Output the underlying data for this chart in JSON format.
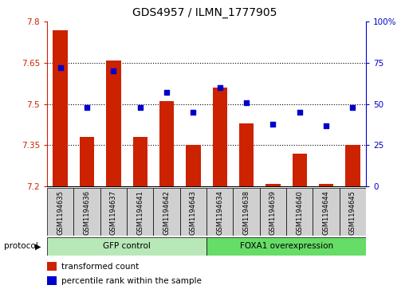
{
  "title": "GDS4957 / ILMN_1777905",
  "samples": [
    "GSM1194635",
    "GSM1194636",
    "GSM1194637",
    "GSM1194641",
    "GSM1194642",
    "GSM1194643",
    "GSM1194634",
    "GSM1194638",
    "GSM1194639",
    "GSM1194640",
    "GSM1194644",
    "GSM1194645"
  ],
  "transformed_count": [
    7.77,
    7.38,
    7.66,
    7.38,
    7.51,
    7.35,
    7.56,
    7.43,
    7.21,
    7.32,
    7.21,
    7.35
  ],
  "percentile_rank": [
    72,
    48,
    70,
    48,
    57,
    45,
    60,
    51,
    38,
    45,
    37,
    48
  ],
  "bar_color": "#cc2200",
  "dot_color": "#0000cc",
  "ylim_left": [
    7.2,
    7.8
  ],
  "ylim_right": [
    0,
    100
  ],
  "yticks_left": [
    7.2,
    7.35,
    7.5,
    7.65,
    7.8
  ],
  "ytick_labels_left": [
    "7.2",
    "7.35",
    "7.5",
    "7.65",
    "7.8"
  ],
  "yticks_right": [
    0,
    25,
    50,
    75,
    100
  ],
  "ytick_labels_right": [
    "0",
    "25",
    "50",
    "75",
    "100%"
  ],
  "gridlines": [
    7.35,
    7.5,
    7.65
  ],
  "group1_label": "GFP control",
  "group2_label": "FOXA1 overexpression",
  "group1_indices": [
    0,
    5
  ],
  "group2_indices": [
    6,
    11
  ],
  "group1_color": "#b8e8b8",
  "group2_color": "#66dd66",
  "protocol_label": "protocol",
  "legend_bar_label": "transformed count",
  "legend_dot_label": "percentile rank within the sample",
  "bar_bottom": 7.2,
  "right_axis_color": "#0000cc",
  "left_axis_color": "#cc2200",
  "background_color": "#d0d0d0"
}
